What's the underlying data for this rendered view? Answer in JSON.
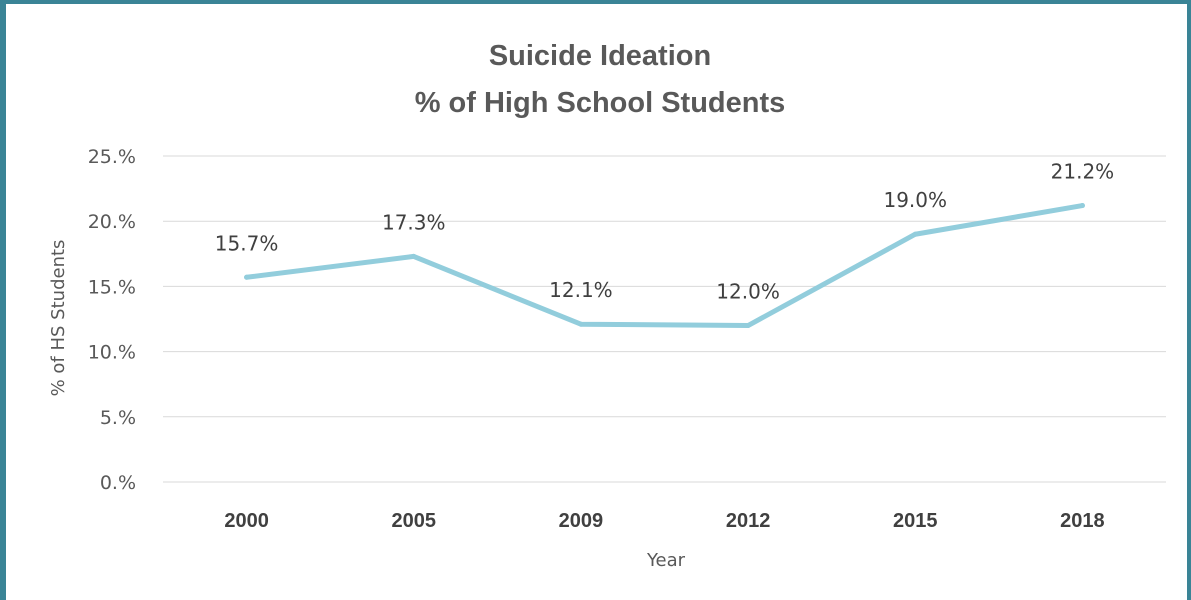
{
  "colors": {
    "frame": "#3a8496",
    "line": "#92cddc",
    "grid": "#d9d9d9",
    "text": "#595959"
  },
  "chart_data": {
    "type": "line",
    "title_lines": [
      "Suicide Ideation",
      "% of High School Students"
    ],
    "xlabel": "Year",
    "ylabel": "% of HS Students",
    "categories": [
      "2000",
      "2005",
      "2009",
      "2012",
      "2015",
      "2018"
    ],
    "series": [
      {
        "values": [
          15.7,
          17.3,
          12.1,
          12.0,
          19.0,
          21.2
        ]
      }
    ],
    "data_labels": [
      "15.7%",
      "17.3%",
      "12.1%",
      "12.0%",
      "19.0%",
      "21.2%"
    ],
    "y_ticks": [
      0,
      5,
      10,
      15,
      20,
      25
    ],
    "y_tick_labels": [
      "0.%",
      "5.%",
      "10.%",
      "15.%",
      "20.%",
      "25.%"
    ],
    "ylim": [
      0,
      25
    ],
    "grid": true,
    "legend": "none"
  }
}
